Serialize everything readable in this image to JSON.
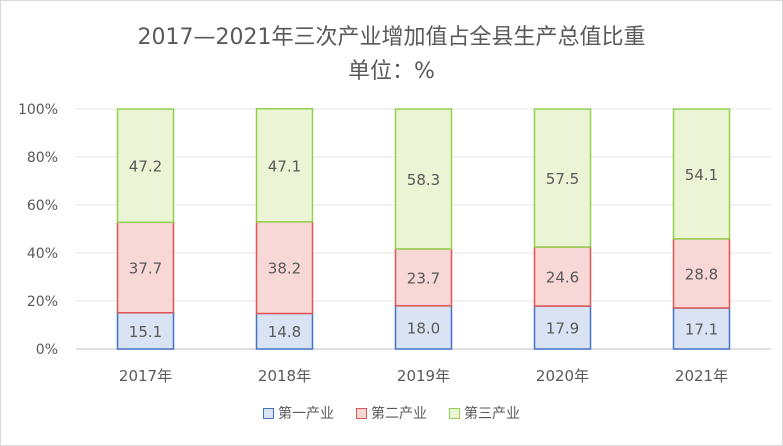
{
  "chart_data": {
    "type": "bar",
    "stacked": "percent",
    "title": "2017—2021年三次产业增加值占全县生产总值比重",
    "subtitle": "单位：%",
    "categories": [
      "2017年",
      "2018年",
      "2019年",
      "2020年",
      "2021年"
    ],
    "series": [
      {
        "name": "第一产业",
        "values": [
          15.1,
          14.8,
          18.0,
          17.9,
          17.1
        ],
        "fill": "#dae3f3",
        "stroke": "#4472c4"
      },
      {
        "name": "第二产业",
        "values": [
          37.7,
          38.2,
          23.7,
          24.6,
          28.8
        ],
        "fill": "#f8d7d7",
        "stroke": "#e05555"
      },
      {
        "name": "第三产业",
        "values": [
          47.2,
          47.1,
          58.3,
          57.5,
          54.1
        ],
        "fill": "#ebf5d5",
        "stroke": "#92d050"
      }
    ],
    "yticks": [
      "0%",
      "20%",
      "40%",
      "60%",
      "80%",
      "100%"
    ],
    "ylim": [
      0,
      100
    ],
    "grid": true,
    "legend": "bottom"
  }
}
